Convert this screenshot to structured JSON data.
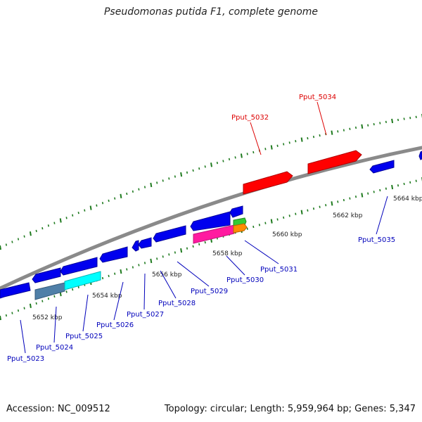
{
  "title": "Pseudomonas putida F1, complete genome",
  "footer": {
    "accession": "Accession: NC_009512",
    "summary": "Topology: circular; Length: 5,959,964 bp; Genes: 5,347"
  },
  "map": {
    "start_kbp": 5651,
    "end_kbp": 5665,
    "kbp_ticks": [
      {
        "kbp": 5652,
        "label": "5652 kbp"
      },
      {
        "kbp": 5654,
        "label": "5654 kbp"
      },
      {
        "kbp": 5656,
        "label": "5656 kbp"
      },
      {
        "kbp": 5658,
        "label": "5658 kbp"
      },
      {
        "kbp": 5660,
        "label": "5660 kbp"
      },
      {
        "kbp": 5662,
        "label": "5662 kbp"
      },
      {
        "kbp": 5664,
        "label": "5664 kbp"
      }
    ],
    "colors": {
      "backbone": "#8a8a8a",
      "tick": "#1e7a1e",
      "forward_gene": "#ff0000",
      "reverse_gene": "#0000ee",
      "label_forward": "#dd0000",
      "label_reverse": "#0000bb"
    },
    "gene_labels": [
      {
        "text": "Pput_5023",
        "strand": "reverse"
      },
      {
        "text": "Pput_5024",
        "strand": "reverse"
      },
      {
        "text": "Pput_5025",
        "strand": "reverse"
      },
      {
        "text": "Pput_5026",
        "strand": "reverse"
      },
      {
        "text": "Pput_5027",
        "strand": "reverse"
      },
      {
        "text": "Pput_5028",
        "strand": "reverse"
      },
      {
        "text": "Pput_5029",
        "strand": "reverse"
      },
      {
        "text": "Pput_5030",
        "strand": "reverse"
      },
      {
        "text": "Pput_5031",
        "strand": "reverse"
      },
      {
        "text": "Pput_5032",
        "strand": "forward"
      },
      {
        "text": "Pput_5034",
        "strand": "forward"
      },
      {
        "text": "Pput_5035",
        "strand": "reverse"
      }
    ]
  }
}
